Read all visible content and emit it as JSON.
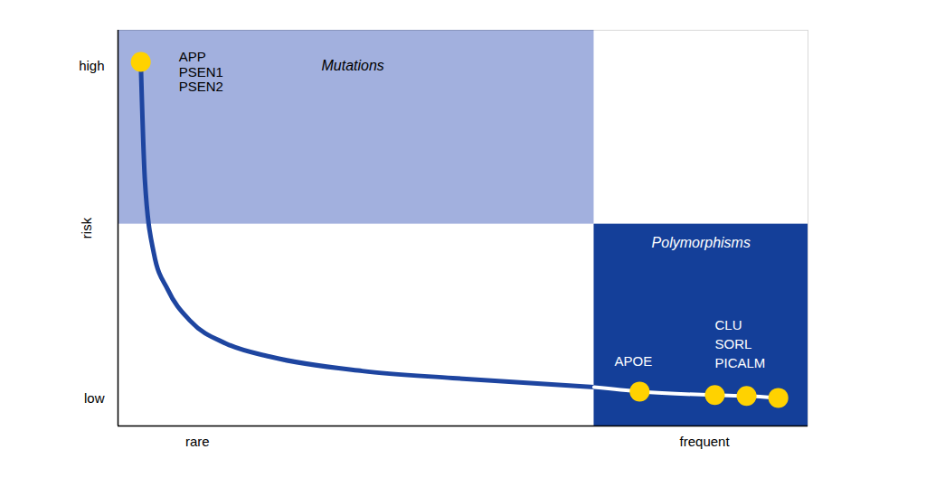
{
  "chart_data": {
    "type": "line",
    "ylabel": "risk",
    "xlim": [
      0,
      100
    ],
    "ylim": [
      0,
      100
    ],
    "xticks": [
      {
        "value": 11.5,
        "label": "rare"
      },
      {
        "value": 85,
        "label": "frequent"
      }
    ],
    "yticks": [
      {
        "value": 7,
        "label": "low"
      },
      {
        "value": 91,
        "label": "high"
      }
    ],
    "color": "#1e45a0",
    "x": [
      3.3,
      3.9,
      5.2,
      7.2,
      10.5,
      15.7,
      22.3,
      35.4,
      48.5,
      69,
      75.6,
      86.5,
      91.1,
      95.7
    ],
    "values": [
      92,
      62,
      43.6,
      34.5,
      26.5,
      20.8,
      17.4,
      13.9,
      12.1,
      9.8,
      8.7,
      7.8,
      7.6,
      7.1
    ],
    "regions": [
      {
        "label": "Mutations",
        "x": [
          0,
          69
        ],
        "y": [
          51,
          100
        ],
        "color": "#a2b0de"
      },
      {
        "label": "Polymorphisms",
        "x": [
          69,
          100
        ],
        "y": [
          0,
          51
        ],
        "color": "#143f99"
      }
    ],
    "points": {
      "color": "#ffd200",
      "marker": "circle",
      "groups": [
        {
          "labels": [
            "APP",
            "PSEN1",
            "PSEN2"
          ],
          "x": [
            3.3
          ],
          "values": [
            92
          ]
        },
        {
          "labels": [
            "APOE"
          ],
          "x": [
            75.6
          ],
          "values": [
            8.7
          ]
        },
        {
          "labels": [
            "CLU",
            "SORL",
            "PICALM"
          ],
          "x": [
            86.5,
            91.1,
            95.7
          ],
          "values": [
            7.8,
            7.6,
            7.1
          ]
        }
      ]
    }
  }
}
